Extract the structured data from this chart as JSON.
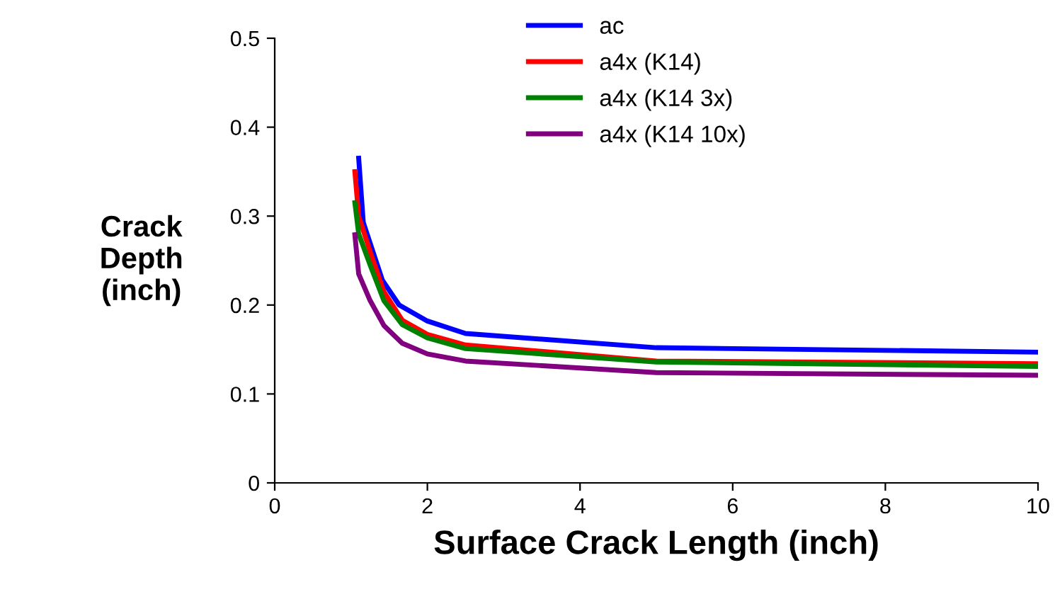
{
  "chart_data": {
    "type": "line",
    "xlabel": "Surface Crack Length (inch)",
    "ylabel": "Crack\nDepth\n(inch)",
    "xlim": [
      0,
      10
    ],
    "xticks": [
      0,
      2,
      4,
      6,
      8,
      10
    ],
    "ylim": [
      0,
      0.5
    ],
    "yticks": [
      0,
      0.1,
      0.2,
      0.3,
      0.4,
      0.5
    ],
    "grid": false,
    "legend": "top",
    "marker": "none",
    "line_style": "solid",
    "series": [
      {
        "name": "ac",
        "color": "#0000ff",
        "x": [
          1.1,
          1.16,
          1.41,
          1.63,
          2,
          2.5,
          5,
          10
        ],
        "values": [
          0.365,
          0.293,
          0.228,
          0.2,
          0.182,
          0.168,
          0.152,
          0.147
        ]
      },
      {
        "name": "a4x (K14)",
        "color": "#ff0000",
        "x": [
          1.05,
          1.1,
          1.25,
          1.43,
          1.67,
          2,
          2.5,
          5,
          10
        ],
        "values": [
          0.35,
          0.3,
          0.26,
          0.215,
          0.183,
          0.167,
          0.155,
          0.137,
          0.134
        ]
      },
      {
        "name": "a4x (K14 3x)",
        "color": "#008000",
        "x": [
          1.05,
          1.1,
          1.25,
          1.43,
          1.67,
          2,
          2.5,
          5,
          10
        ],
        "values": [
          0.315,
          0.28,
          0.245,
          0.205,
          0.178,
          0.163,
          0.151,
          0.136,
          0.131
        ]
      },
      {
        "name": "a4x (K14 10x)",
        "color": "#800080",
        "x": [
          1.05,
          1.1,
          1.25,
          1.43,
          1.67,
          2,
          2.5,
          5,
          10
        ],
        "values": [
          0.279,
          0.235,
          0.205,
          0.177,
          0.157,
          0.145,
          0.137,
          0.124,
          0.121
        ]
      }
    ]
  }
}
